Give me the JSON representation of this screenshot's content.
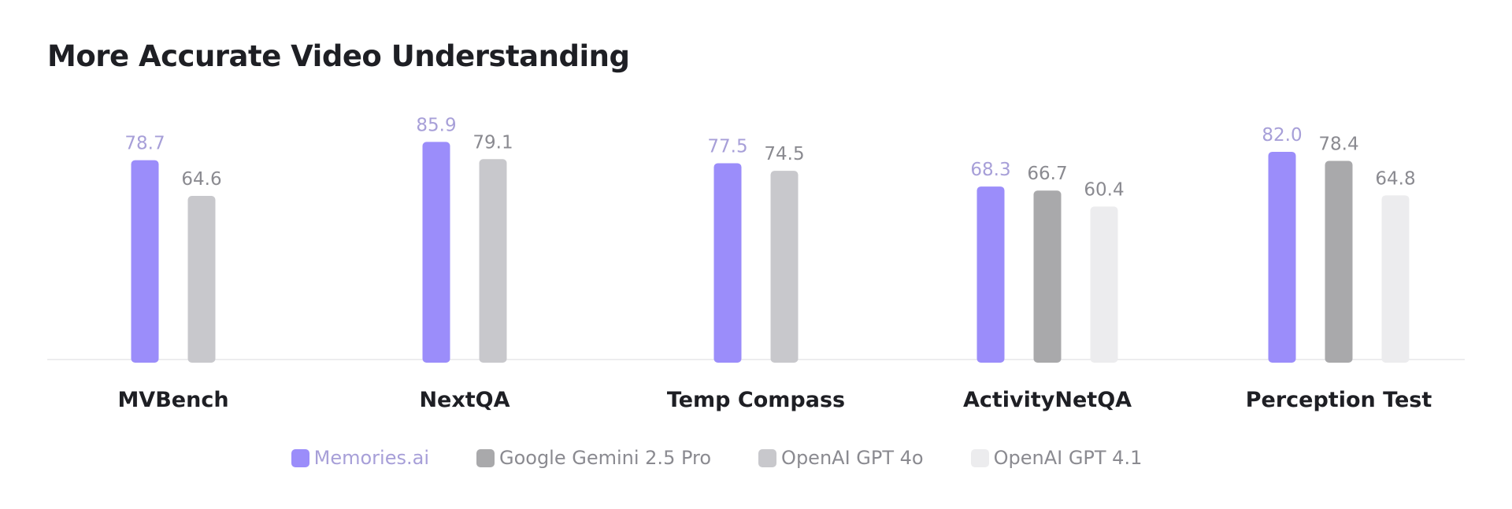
{
  "chart_data": {
    "type": "bar",
    "title": "More Accurate Video Understanding",
    "xlabel": "",
    "ylabel": "",
    "categories": [
      "MVBench",
      "NextQA",
      "Temp Compass",
      "ActivityNetQA",
      "Perception Test"
    ],
    "series": [
      {
        "name": "Memories.ai",
        "color": "#9b8dfa",
        "label_color": "#a79fd8",
        "values": [
          78.7,
          85.9,
          77.5,
          68.3,
          82.0
        ]
      },
      {
        "name": "Google Gemini 2.5 Pro",
        "color": "#a9a9ab",
        "label_color": "#8a8a90",
        "values": [
          null,
          null,
          null,
          66.7,
          78.4
        ]
      },
      {
        "name": "OpenAI GPT 4o",
        "color": "#c8c8cc",
        "label_color": "#8a8a90",
        "values": [
          64.6,
          79.1,
          74.5,
          null,
          null
        ]
      },
      {
        "name": "OpenAI GPT 4.1",
        "color": "#ececee",
        "label_color": "#8a8a90",
        "values": [
          null,
          null,
          null,
          60.4,
          64.8
        ]
      }
    ],
    "value_labels": {
      "MVBench": [
        "78.7",
        "64.6"
      ],
      "NextQA": [
        "85.9",
        "79.1"
      ],
      "Temp Compass": [
        "77.5",
        "74.5"
      ],
      "ActivityNetQA": [
        "68.3",
        "66.7",
        "60.4"
      ],
      "Perception Test": [
        "82.0",
        "78.4",
        "64.8"
      ]
    },
    "ylim": [
      0,
      100
    ],
    "grid": false,
    "legend_position": "bottom-center"
  }
}
